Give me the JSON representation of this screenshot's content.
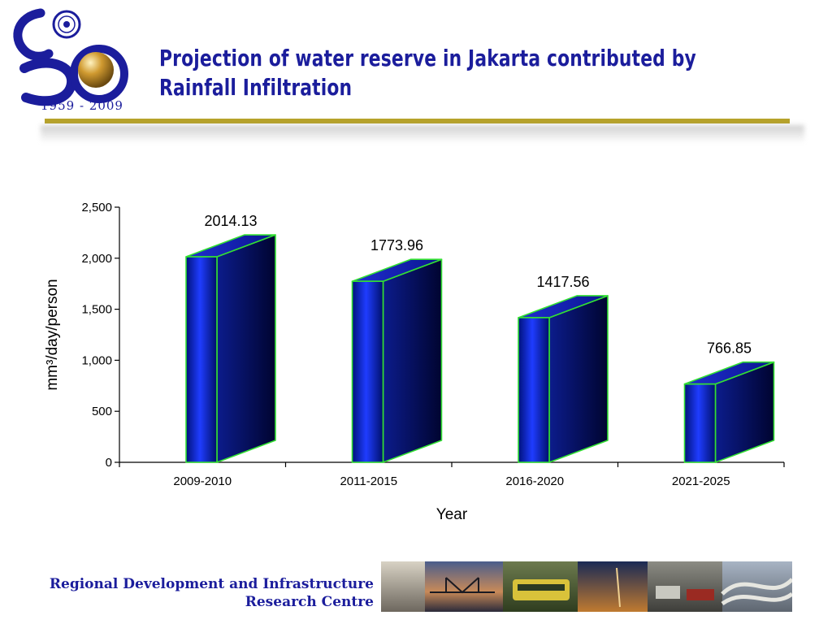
{
  "logo": {
    "years": "1959 - 2009"
  },
  "title": {
    "line1": "Projection of water reserve in Jakarta contributed by",
    "line2": "Rainfall Infiltration"
  },
  "footer": {
    "org_line1": "Regional Development and Infrastructure",
    "org_line2": "Research Centre"
  },
  "colors": {
    "title": "#1b1d9c",
    "bar": "#0a1a9e",
    "bar_edge": "#33e033",
    "rule": "#b7a32a"
  },
  "chart_data": {
    "type": "bar",
    "categories": [
      "2009-2010",
      "2011-2015",
      "2016-2020",
      "2021-2025"
    ],
    "values": [
      2014.13,
      1773.96,
      1417.56,
      766.85
    ],
    "data_labels": [
      "2014.13",
      "1773.96",
      "1417.56",
      "766.85"
    ],
    "xlabel": "Year",
    "ylabel": "mm³/day/person",
    "ylim": [
      0,
      2500
    ],
    "yticks": [
      0,
      500,
      1000,
      1500,
      2000,
      2500
    ],
    "ytick_labels": [
      "0",
      "500",
      "1,000",
      "1,500",
      "2,000",
      "2,500"
    ],
    "grid": false,
    "style": "3d-column"
  }
}
